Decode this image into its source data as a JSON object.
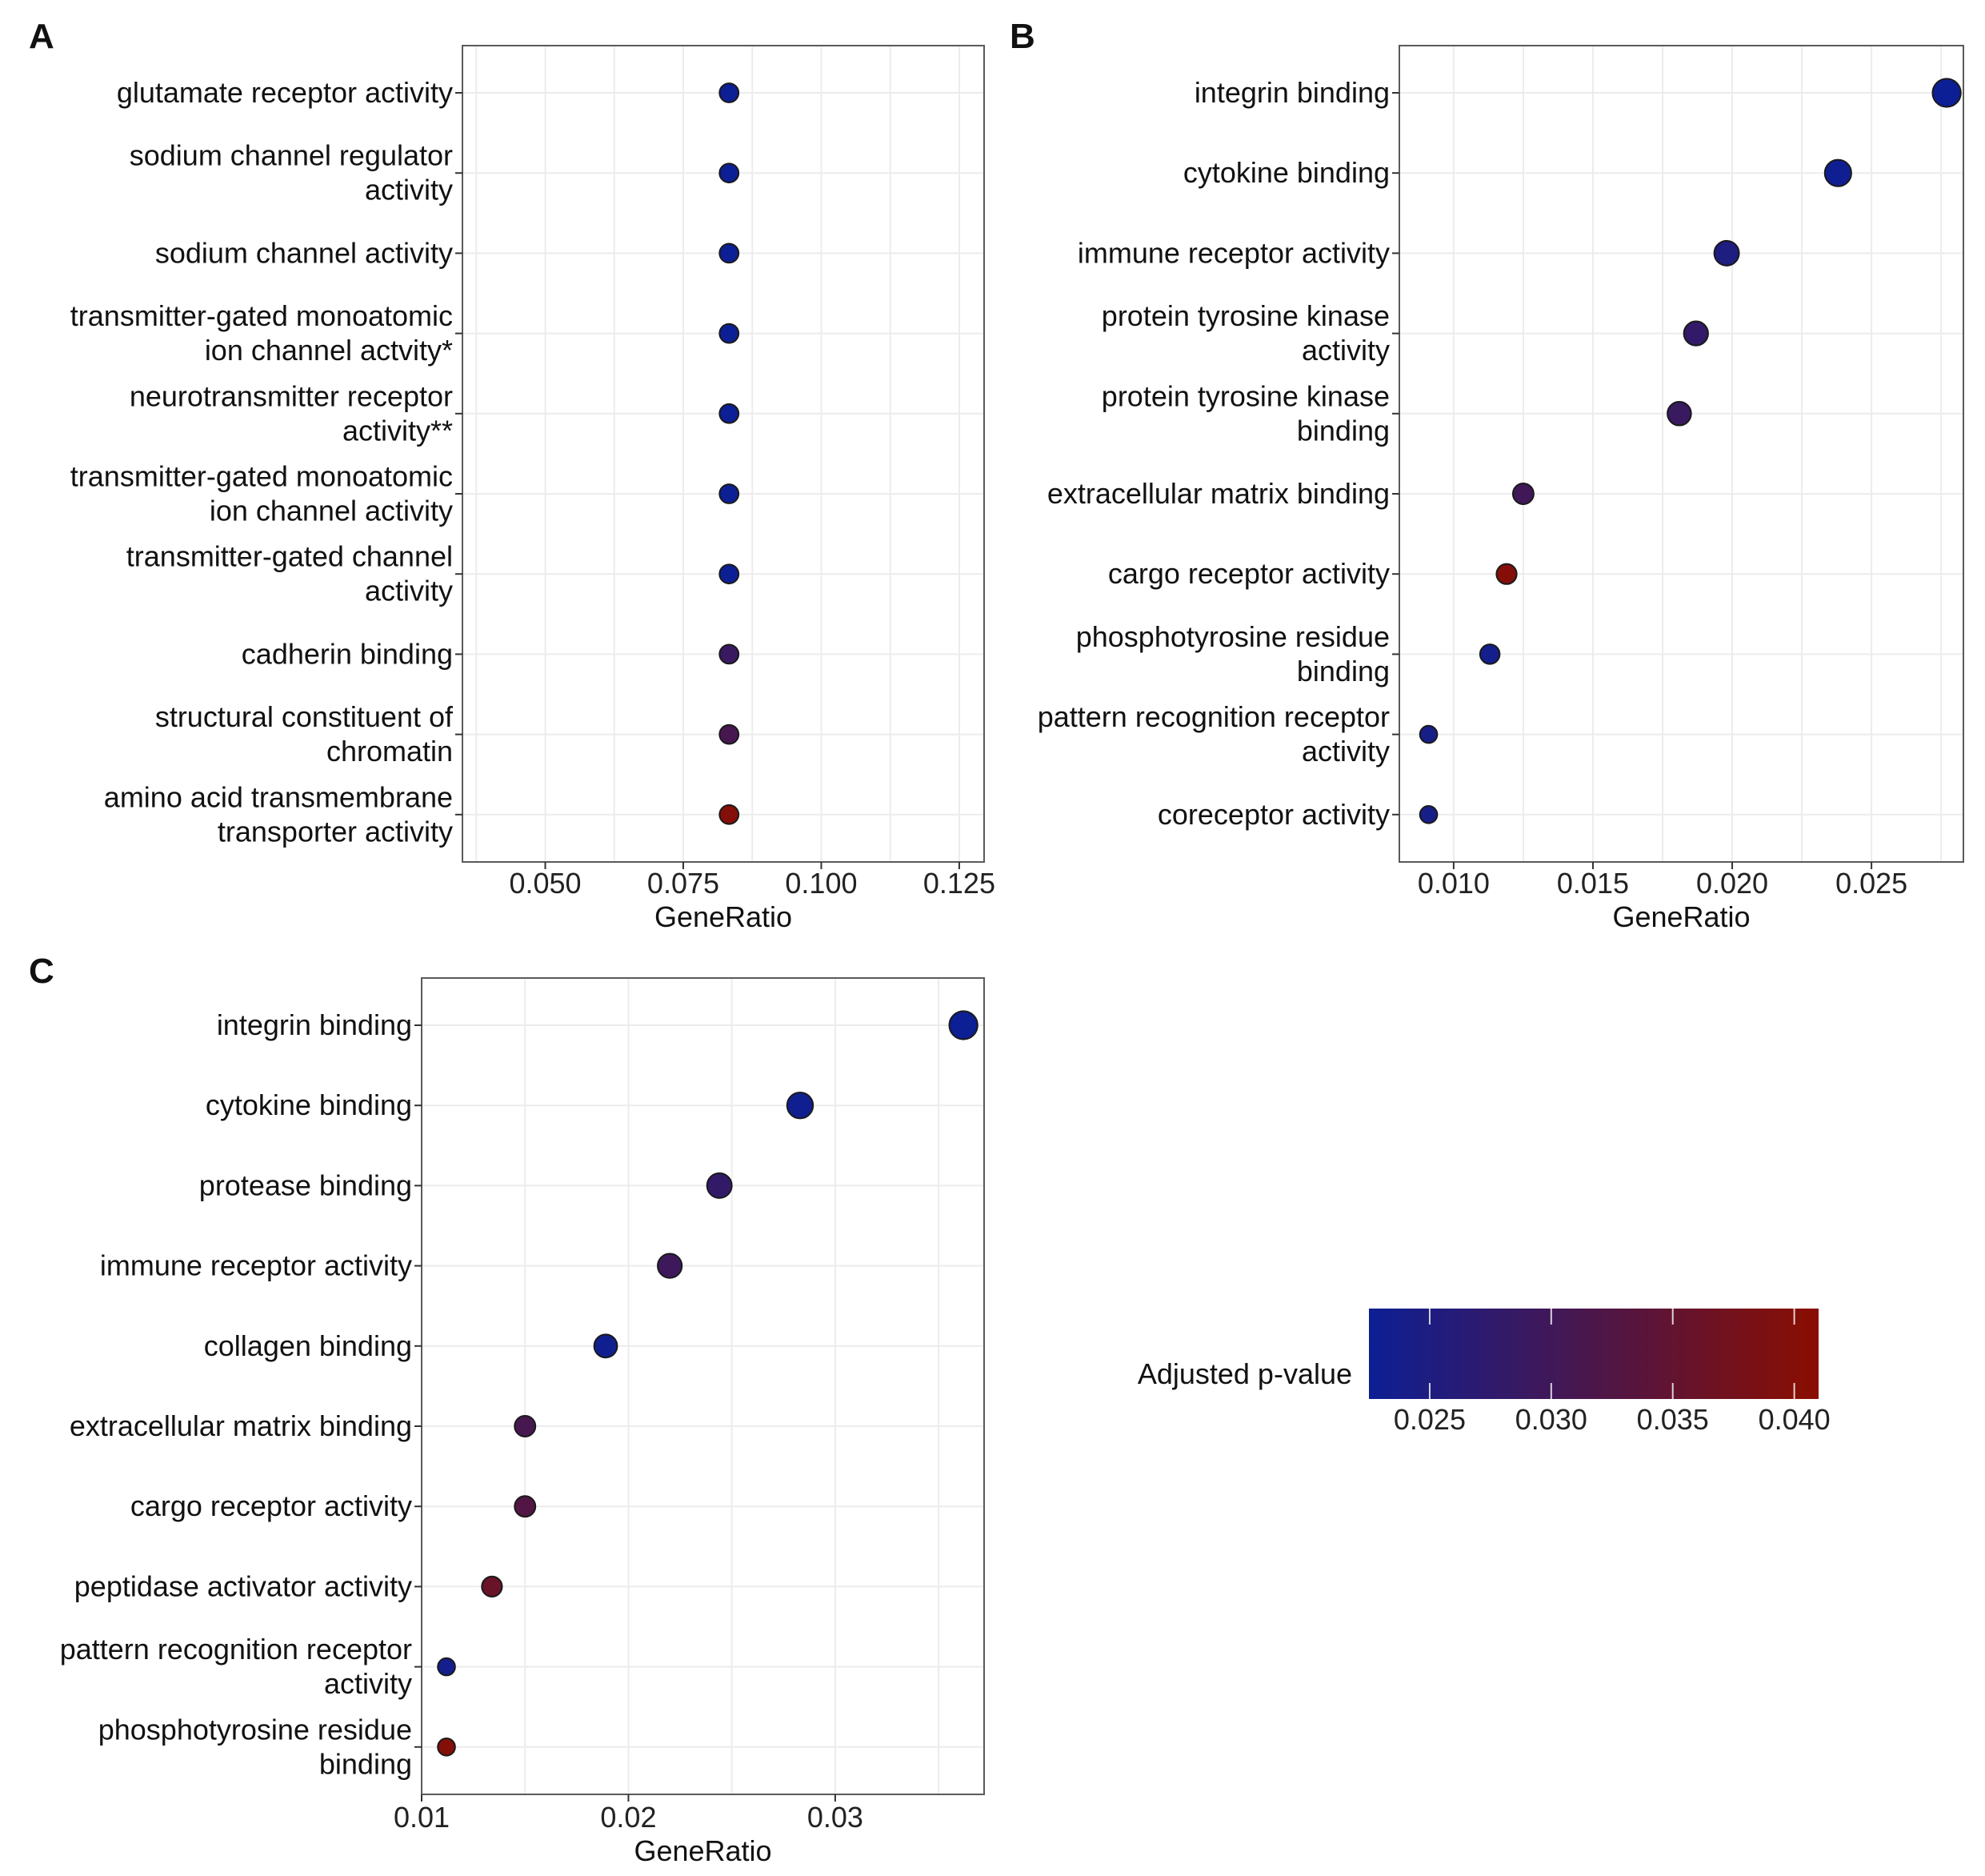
{
  "chart_data": [
    {
      "panel": "A",
      "type": "scatter",
      "xlabel": "GeneRatio",
      "ylabel": "",
      "xlim": [
        0.035,
        0.1295
      ],
      "xticks": [
        0.05,
        0.075,
        0.1,
        0.125
      ],
      "xtick_labels": [
        "0.050",
        "0.075",
        "0.100",
        "0.125"
      ],
      "grid": true,
      "points": [
        {
          "label": [
            "glutamate receptor activity"
          ],
          "x": 0.0833,
          "padj": 0.0225,
          "size": 4
        },
        {
          "label": [
            "sodium channel regulator",
            "activity"
          ],
          "x": 0.0833,
          "padj": 0.0225,
          "size": 4
        },
        {
          "label": [
            "sodium channel activity"
          ],
          "x": 0.0833,
          "padj": 0.0225,
          "size": 4
        },
        {
          "label": [
            "transmitter-gated monoatomic",
            "ion channel actvity*"
          ],
          "x": 0.0833,
          "padj": 0.0225,
          "size": 4
        },
        {
          "label": [
            "neurotransmitter receptor",
            "activity**"
          ],
          "x": 0.0833,
          "padj": 0.0225,
          "size": 4
        },
        {
          "label": [
            "transmitter-gated monoatomic",
            "ion channel activity"
          ],
          "x": 0.0833,
          "padj": 0.0225,
          "size": 4
        },
        {
          "label": [
            "transmitter-gated channel",
            "activity"
          ],
          "x": 0.0833,
          "padj": 0.0225,
          "size": 4
        },
        {
          "label": [
            "cadherin binding"
          ],
          "x": 0.0833,
          "padj": 0.029,
          "size": 4
        },
        {
          "label": [
            "structural constituent of",
            "chromatin"
          ],
          "x": 0.0833,
          "padj": 0.031,
          "size": 4
        },
        {
          "label": [
            "amino acid transmembrane",
            "transporter activity"
          ],
          "x": 0.0833,
          "padj": 0.04,
          "size": 4
        }
      ]
    },
    {
      "panel": "B",
      "type": "scatter",
      "xlabel": "GeneRatio",
      "ylabel": "",
      "xlim": [
        0.00805,
        0.0283
      ],
      "xticks": [
        0.01,
        0.015,
        0.02,
        0.025
      ],
      "xtick_labels": [
        "0.010",
        "0.015",
        "0.020",
        "0.025"
      ],
      "grid": true,
      "points": [
        {
          "label": [
            "integrin binding"
          ],
          "x": 0.0277,
          "padj": 0.0225,
          "size": 12
        },
        {
          "label": [
            "cytokine binding"
          ],
          "x": 0.0238,
          "padj": 0.0228,
          "size": 10.5
        },
        {
          "label": [
            "immune receptor activity"
          ],
          "x": 0.0198,
          "padj": 0.025,
          "size": 9
        },
        {
          "label": [
            "protein tyrosine kinase",
            "activity"
          ],
          "x": 0.0187,
          "padj": 0.028,
          "size": 8.5
        },
        {
          "label": [
            "protein tyrosine kinase",
            "binding"
          ],
          "x": 0.0181,
          "padj": 0.029,
          "size": 8
        },
        {
          "label": [
            "extracellular matrix binding"
          ],
          "x": 0.0125,
          "padj": 0.03,
          "size": 5.5
        },
        {
          "label": [
            "cargo receptor activity"
          ],
          "x": 0.0119,
          "padj": 0.04,
          "size": 5
        },
        {
          "label": [
            "phosphotyrosine residue",
            "binding"
          ],
          "x": 0.0113,
          "padj": 0.0235,
          "size": 4.5
        },
        {
          "label": [
            "pattern recognition receptor",
            "activity"
          ],
          "x": 0.0091,
          "padj": 0.024,
          "size": 2.5
        },
        {
          "label": [
            "coreceptor activity"
          ],
          "x": 0.0091,
          "padj": 0.024,
          "size": 2.5
        }
      ]
    },
    {
      "panel": "C",
      "type": "scatter",
      "xlabel": "GeneRatio",
      "ylabel": "",
      "xlim": [
        0.01,
        0.0372
      ],
      "xticks": [
        0.01,
        0.02,
        0.03
      ],
      "xtick_labels": [
        "0.01",
        "0.02",
        "0.03"
      ],
      "grid": true,
      "points": [
        {
          "label": [
            "integrin binding"
          ],
          "x": 0.0362,
          "padj": 0.0225,
          "size": 12
        },
        {
          "label": [
            "cytokine binding"
          ],
          "x": 0.0283,
          "padj": 0.023,
          "size": 10
        },
        {
          "label": [
            "protease binding"
          ],
          "x": 0.0244,
          "padj": 0.028,
          "size": 9
        },
        {
          "label": [
            "immune receptor activity"
          ],
          "x": 0.022,
          "padj": 0.0295,
          "size": 8.5
        },
        {
          "label": [
            "collagen binding"
          ],
          "x": 0.0189,
          "padj": 0.023,
          "size": 7.5
        },
        {
          "label": [
            "extracellular matrix binding"
          ],
          "x": 0.015,
          "padj": 0.031,
          "size": 5.5
        },
        {
          "label": [
            "cargo receptor activity"
          ],
          "x": 0.015,
          "padj": 0.0325,
          "size": 5.5
        },
        {
          "label": [
            "peptidase activator activity"
          ],
          "x": 0.0134,
          "padj": 0.036,
          "size": 5
        },
        {
          "label": [
            "pattern recognition receptor",
            "activity"
          ],
          "x": 0.0112,
          "padj": 0.0235,
          "size": 2.5
        },
        {
          "label": [
            "phosphotyrosine residue",
            "binding"
          ],
          "x": 0.0112,
          "padj": 0.04,
          "size": 2.5
        }
      ]
    }
  ],
  "legend": {
    "title": "Adjusted p-value",
    "range": [
      0.0225,
      0.041
    ],
    "ticks": [
      0.025,
      0.03,
      0.035,
      0.04
    ],
    "tick_labels": [
      "0.025",
      "0.030",
      "0.035",
      "0.040"
    ],
    "color_low": "#0d1f94",
    "color_high": "#8b0e00"
  }
}
